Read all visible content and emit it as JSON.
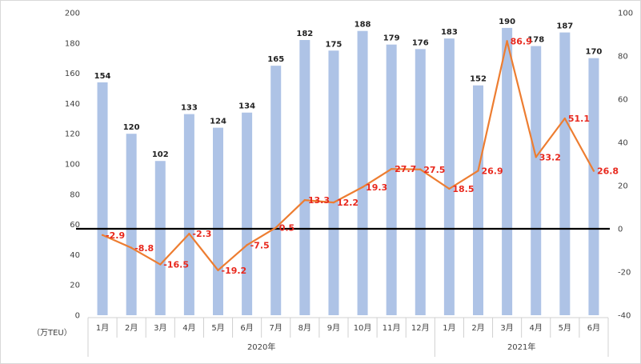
{
  "chart_data": {
    "type": "bar",
    "combo_line": true,
    "unit_label": "（万TEU）",
    "categories": [
      "1月",
      "2月",
      "3月",
      "4月",
      "5月",
      "6月",
      "7月",
      "8月",
      "9月",
      "10月",
      "11月",
      "12月",
      "1月",
      "2月",
      "3月",
      "4月",
      "5月",
      "6月"
    ],
    "year_groups": [
      {
        "label": "2020年",
        "count": 12
      },
      {
        "label": "2021年",
        "count": 6
      }
    ],
    "series": [
      {
        "type": "bar",
        "axis": "left",
        "values": [
          154,
          120,
          102,
          133,
          124,
          134,
          165,
          182,
          175,
          188,
          179,
          176,
          183,
          152,
          190,
          178,
          187,
          170
        ],
        "labels": [
          "154",
          "120",
          "102",
          "133",
          "124",
          "134",
          "165",
          "182",
          "175",
          "188",
          "179",
          "176",
          "183",
          "152",
          "190",
          "178",
          "187",
          "170"
        ],
        "color": "#aec3e6"
      },
      {
        "type": "line",
        "axis": "right",
        "values": [
          -2.9,
          -8.8,
          -16.5,
          -2.3,
          -19.2,
          -7.5,
          0.5,
          13.3,
          12.2,
          19.3,
          27.7,
          27.5,
          18.5,
          26.9,
          86.9,
          33.2,
          51.1,
          26.8
        ],
        "labels": [
          "-2.9",
          "-8.8",
          "-16.5",
          "-2.3",
          "-19.2",
          "-7.5",
          "0.5",
          "13.3",
          "12.2",
          "19.3",
          "27.7",
          "27.5",
          "18.5",
          "26.9",
          "86.9",
          "33.2",
          "51.1",
          "26.8"
        ],
        "color": "#ed7d31",
        "label_color": "#e8281d"
      }
    ],
    "y_left": {
      "min": 0,
      "max": 200,
      "step": 20,
      "ticks": [
        "0",
        "20",
        "40",
        "60",
        "80",
        "100",
        "120",
        "140",
        "160",
        "180",
        "200"
      ]
    },
    "y_right": {
      "min": -40,
      "max": 100,
      "step": 20,
      "ticks": [
        "-40",
        "-20",
        "0",
        "20",
        "40",
        "60",
        "80",
        "100"
      ]
    },
    "zero_line_color": "#000000",
    "grid": false,
    "legend": "none"
  }
}
